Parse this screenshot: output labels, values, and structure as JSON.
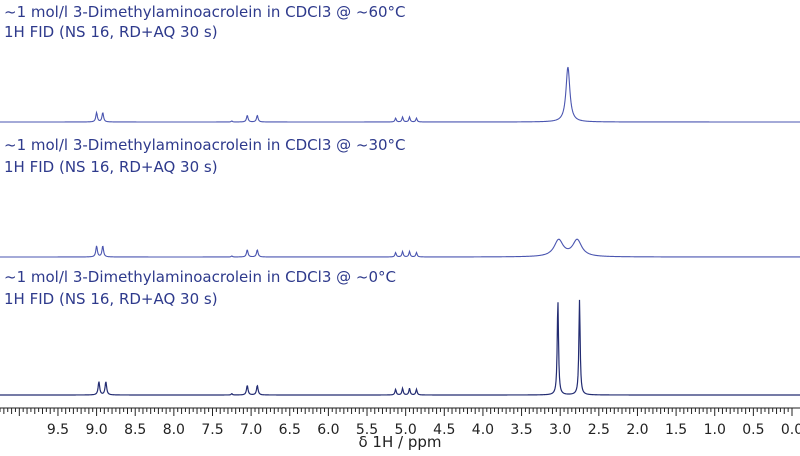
{
  "chart_data": {
    "type": "line",
    "xlabel": "δ 1H / ppm",
    "x_direction": "reversed",
    "xlim": [
      10.25,
      0.0
    ],
    "major_ticks": [
      9.5,
      9.0,
      8.5,
      8.0,
      7.5,
      7.0,
      6.5,
      6.0,
      5.5,
      5.0,
      4.5,
      4.0,
      3.5,
      3.0,
      2.5,
      2.0,
      1.5,
      1.0,
      0.5,
      0.0
    ],
    "tick_labels": [
      "9.5",
      "9.0",
      "8.5",
      "8.0",
      "7.5",
      "7.0",
      "6.5",
      "6.0",
      "5.5",
      "5.0",
      "4.5",
      "4.0",
      "3.5",
      "3.0",
      "2.5",
      "2.0",
      "1.5",
      "1.0",
      "0.5",
      "0.0"
    ],
    "grid": false,
    "series": [
      {
        "title_line1": "~1 mol/l 3-Dimethylaminoacrolein in CDCl3 @ ~60°C",
        "title_line2": "1H FID (NS 16, RD+AQ 30 s)",
        "color": "#4a55b0",
        "peaks": [
          {
            "ppm": 9.0,
            "height": 0.17,
            "width": 0.012
          },
          {
            "ppm": 8.92,
            "height": 0.17,
            "width": 0.012
          },
          {
            "ppm": 7.25,
            "height": 0.02,
            "width": 0.008
          },
          {
            "ppm": 7.05,
            "height": 0.12,
            "width": 0.012
          },
          {
            "ppm": 6.92,
            "height": 0.12,
            "width": 0.012
          },
          {
            "ppm": 5.13,
            "height": 0.07,
            "width": 0.01
          },
          {
            "ppm": 5.04,
            "height": 0.09,
            "width": 0.01
          },
          {
            "ppm": 4.95,
            "height": 0.09,
            "width": 0.01
          },
          {
            "ppm": 4.86,
            "height": 0.07,
            "width": 0.01
          },
          {
            "ppm": 2.9,
            "height": 1.0,
            "width": 0.03
          }
        ]
      },
      {
        "title_line1": "~1 mol/l 3-Dimethylaminoacrolein in CDCl3 @ ~30°C",
        "title_line2": "1H FID (NS 16, RD+AQ 30 s)",
        "color": "#4a55b0",
        "peaks": [
          {
            "ppm": 9.0,
            "height": 0.2,
            "width": 0.012
          },
          {
            "ppm": 8.92,
            "height": 0.2,
            "width": 0.012
          },
          {
            "ppm": 7.25,
            "height": 0.02,
            "width": 0.008
          },
          {
            "ppm": 7.05,
            "height": 0.13,
            "width": 0.012
          },
          {
            "ppm": 6.92,
            "height": 0.13,
            "width": 0.012
          },
          {
            "ppm": 5.13,
            "height": 0.08,
            "width": 0.01
          },
          {
            "ppm": 5.04,
            "height": 0.1,
            "width": 0.01
          },
          {
            "ppm": 4.95,
            "height": 0.1,
            "width": 0.01
          },
          {
            "ppm": 4.86,
            "height": 0.08,
            "width": 0.01
          },
          {
            "ppm": 3.02,
            "height": 0.3,
            "width": 0.07
          },
          {
            "ppm": 2.78,
            "height": 0.3,
            "width": 0.07
          }
        ]
      },
      {
        "title_line1": "~1 mol/l 3-Dimethylaminoacrolein in CDCl3 @ ~0°C",
        "title_line2": "1H FID (NS 16, RD+AQ 30 s)",
        "color": "#232c72",
        "peaks": [
          {
            "ppm": 8.97,
            "height": 0.14,
            "width": 0.012
          },
          {
            "ppm": 8.88,
            "height": 0.14,
            "width": 0.012
          },
          {
            "ppm": 7.25,
            "height": 0.015,
            "width": 0.008
          },
          {
            "ppm": 7.05,
            "height": 0.1,
            "width": 0.012
          },
          {
            "ppm": 6.92,
            "height": 0.1,
            "width": 0.012
          },
          {
            "ppm": 5.13,
            "height": 0.06,
            "width": 0.01
          },
          {
            "ppm": 5.04,
            "height": 0.07,
            "width": 0.01
          },
          {
            "ppm": 4.95,
            "height": 0.07,
            "width": 0.01
          },
          {
            "ppm": 4.86,
            "height": 0.06,
            "width": 0.01
          },
          {
            "ppm": 3.03,
            "height": 1.0,
            "width": 0.01
          },
          {
            "ppm": 2.75,
            "height": 1.0,
            "width": 0.01
          }
        ]
      }
    ]
  }
}
